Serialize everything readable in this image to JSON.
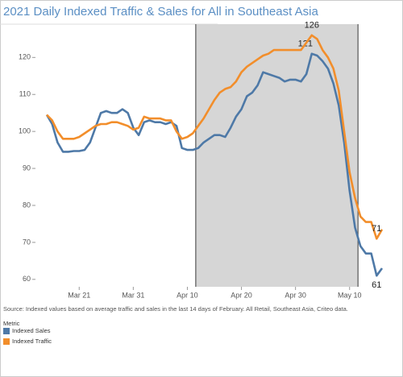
{
  "chart_data": {
    "type": "line",
    "title": "2021 Daily Indexed Traffic & Sales for All in Southeast Asia",
    "source": "Source: Indexed values based on average traffic and sales in the last 14 days of February. All Retail, Southeast Asia, Criteo data.",
    "legend_title": "Metric",
    "x": [
      "Mar 15",
      "Mar 16",
      "Mar 17",
      "Mar 18",
      "Mar 19",
      "Mar 20",
      "Mar 21",
      "Mar 22",
      "Mar 23",
      "Mar 24",
      "Mar 25",
      "Mar 26",
      "Mar 27",
      "Mar 28",
      "Mar 29",
      "Mar 30",
      "Mar 31",
      "Apr 1",
      "Apr 2",
      "Apr 3",
      "Apr 4",
      "Apr 5",
      "Apr 6",
      "Apr 7",
      "Apr 8",
      "Apr 9",
      "Apr 10",
      "Apr 11",
      "Apr 12",
      "Apr 13",
      "Apr 14",
      "Apr 15",
      "Apr 16",
      "Apr 17",
      "Apr 18",
      "Apr 19",
      "Apr 20",
      "Apr 21",
      "Apr 22",
      "Apr 23",
      "Apr 24",
      "Apr 25",
      "Apr 26",
      "Apr 27",
      "Apr 28",
      "Apr 29",
      "Apr 30",
      "May 1",
      "May 2",
      "May 3",
      "May 4",
      "May 5",
      "May 6",
      "May 7",
      "May 8",
      "May 9",
      "May 10",
      "May 11",
      "May 12",
      "May 13",
      "May 14",
      "May 15",
      "May 16"
    ],
    "xticks": [
      "Mar 21",
      "Mar 31",
      "Apr 10",
      "Apr 20",
      "Apr 30",
      "May 10"
    ],
    "shade": [
      "Apr 12",
      "May 12"
    ],
    "ylim": [
      58,
      129
    ],
    "yticks": [
      60,
      70,
      80,
      90,
      100,
      110,
      120
    ],
    "series": [
      {
        "name": "Indexed Sales",
        "color": "#4e79a7",
        "values": [
          104.5,
          102,
          97,
          94.5,
          94.5,
          94.7,
          94.7,
          95,
          97,
          101,
          105,
          105.5,
          105,
          105,
          106,
          105,
          101,
          99,
          102.5,
          103,
          102.5,
          102.5,
          102,
          102.5,
          101.5,
          95.5,
          95,
          95,
          95.5,
          97,
          98,
          99,
          99,
          98.5,
          101,
          104,
          106,
          109.5,
          110.5,
          112.5,
          116,
          115.5,
          115,
          114.5,
          113.5,
          114,
          114,
          113.5,
          115.5,
          121,
          120.5,
          119,
          117,
          113,
          107,
          97,
          84,
          74,
          69,
          67,
          67,
          61,
          63
        ],
        "value_labels": [
          null,
          null,
          null,
          null,
          null,
          null,
          null,
          null,
          null,
          null,
          null,
          null,
          null,
          null,
          null,
          null,
          null,
          null,
          null,
          null,
          null,
          null,
          null,
          null,
          null,
          null,
          null,
          null,
          null,
          null,
          null,
          null,
          null,
          null,
          null,
          null,
          null,
          null,
          null,
          null,
          null,
          null,
          null,
          null,
          null,
          null,
          null,
          null,
          null,
          "121",
          null,
          null,
          null,
          null,
          null,
          null,
          null,
          null,
          null,
          null,
          null,
          "61",
          null
        ]
      },
      {
        "name": "Indexed Traffic",
        "color": "#f28e2b",
        "values": [
          104.5,
          103,
          100,
          98,
          98,
          98,
          98.5,
          99.5,
          100.5,
          101.5,
          102,
          102,
          102.5,
          102.5,
          102,
          101.5,
          100.5,
          101,
          104,
          103.5,
          103.5,
          103.5,
          103,
          103,
          100,
          98,
          98.5,
          99.5,
          101.5,
          103.5,
          106,
          108.5,
          110.5,
          111.5,
          112,
          113.5,
          116,
          117.5,
          118.5,
          119.5,
          120.5,
          121,
          122,
          122,
          122,
          122,
          122,
          122,
          124,
          126,
          125,
          122,
          120,
          117,
          111,
          100,
          89,
          82,
          77,
          75.5,
          75.5,
          71,
          73.5
        ],
        "value_labels": [
          null,
          null,
          null,
          null,
          null,
          null,
          null,
          null,
          null,
          null,
          null,
          null,
          null,
          null,
          null,
          null,
          null,
          null,
          null,
          null,
          null,
          null,
          null,
          null,
          null,
          null,
          null,
          null,
          null,
          null,
          null,
          null,
          null,
          null,
          null,
          null,
          null,
          null,
          null,
          null,
          null,
          null,
          null,
          null,
          null,
          null,
          null,
          null,
          null,
          "126",
          null,
          null,
          null,
          null,
          null,
          null,
          null,
          null,
          null,
          null,
          null,
          "71",
          null
        ]
      }
    ]
  }
}
